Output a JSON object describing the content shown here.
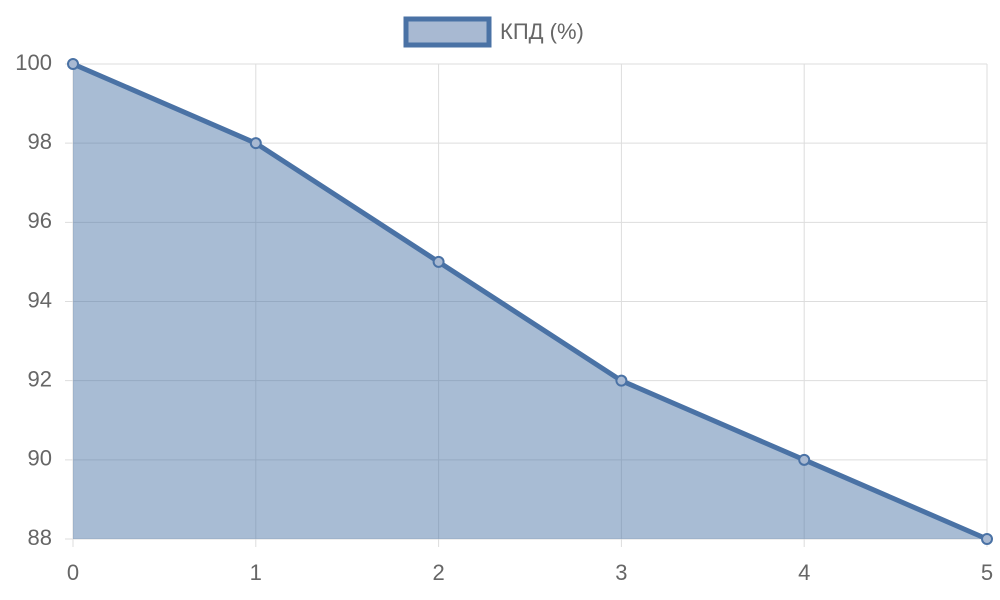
{
  "chart_data": {
    "type": "line",
    "x": [
      0,
      1,
      2,
      3,
      4,
      5
    ],
    "xlim": [
      0,
      5
    ],
    "xticks": [
      0,
      1,
      2,
      3,
      4,
      5
    ],
    "series": [
      {
        "name": "КПД (%)",
        "color": "#4a72a5",
        "values": [
          100,
          98,
          95,
          92,
          90,
          88
        ]
      }
    ],
    "ylim": [
      88,
      100
    ],
    "yticks": [
      88,
      90,
      92,
      94,
      96,
      98,
      100
    ],
    "grid": true,
    "fill": true,
    "legend": "top"
  }
}
